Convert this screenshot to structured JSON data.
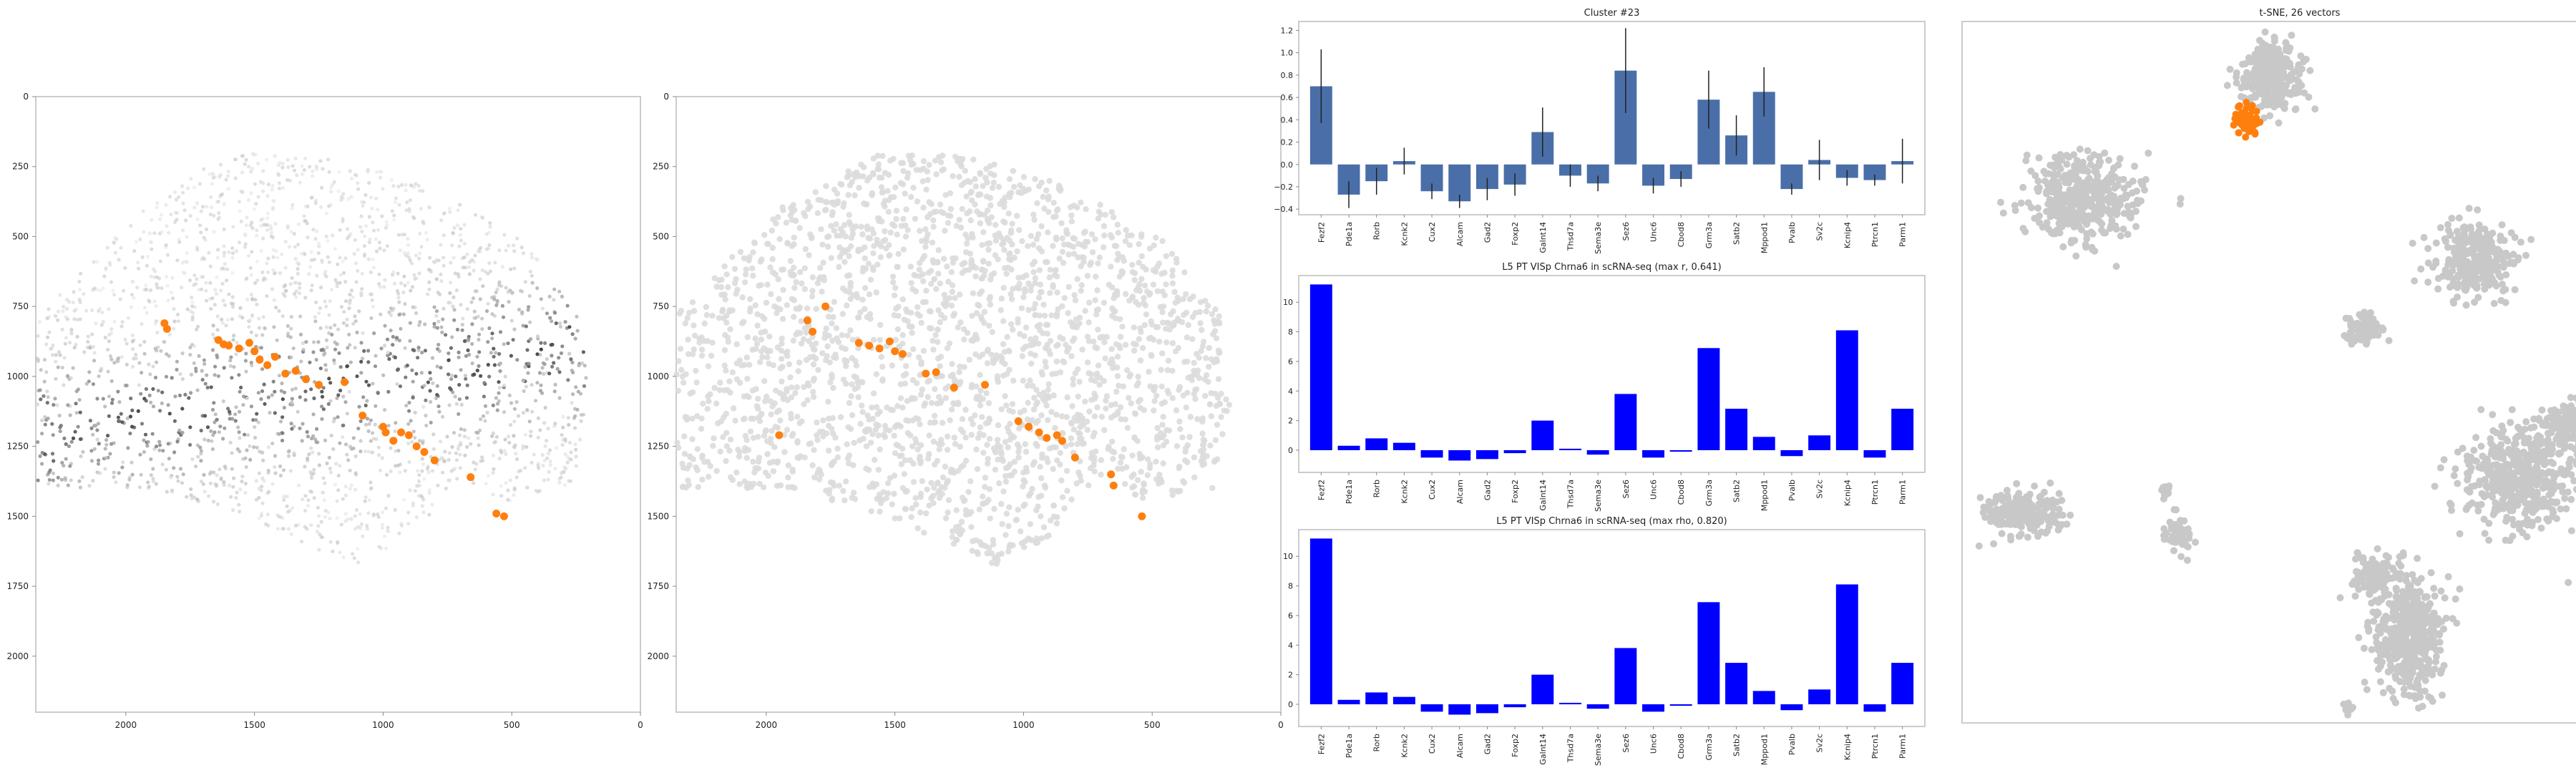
{
  "colors": {
    "bar_blue": "#4a6fa8",
    "bar_pure_blue": "#0000ff",
    "highlight_orange": "#ff7f0e",
    "cell_gray": "#c8c8c8",
    "frame_gray": "#cccccc"
  },
  "chart_data": [
    {
      "id": "spatial-left",
      "type": "scatter",
      "title": "",
      "xlim": [
        2350,
        0
      ],
      "ylim": [
        2200,
        0
      ],
      "x_ticks": [
        2000,
        1500,
        1000,
        500,
        0
      ],
      "y_ticks": [
        0,
        250,
        500,
        750,
        1000,
        1250,
        1500,
        1750,
        2000
      ],
      "x_tick_labels": [
        "2000",
        "1500",
        "1000",
        "500",
        "0"
      ],
      "y_tick_labels": [
        "0",
        "250",
        "500",
        "750",
        "1000",
        "1250",
        "1500",
        "1750",
        "2000"
      ],
      "background": "grayscale expression density, dark band ~y 800–1300",
      "highlight_points": [
        [
          1850,
          810
        ],
        [
          1840,
          830
        ],
        [
          1640,
          870
        ],
        [
          1620,
          885
        ],
        [
          1600,
          890
        ],
        [
          1560,
          900
        ],
        [
          1520,
          880
        ],
        [
          1500,
          910
        ],
        [
          1480,
          940
        ],
        [
          1450,
          960
        ],
        [
          1420,
          930
        ],
        [
          1380,
          990
        ],
        [
          1340,
          980
        ],
        [
          1300,
          1010
        ],
        [
          1250,
          1030
        ],
        [
          1150,
          1020
        ],
        [
          1080,
          1140
        ],
        [
          1000,
          1180
        ],
        [
          990,
          1200
        ],
        [
          960,
          1230
        ],
        [
          930,
          1200
        ],
        [
          900,
          1210
        ],
        [
          870,
          1250
        ],
        [
          840,
          1270
        ],
        [
          800,
          1300
        ],
        [
          660,
          1360
        ],
        [
          560,
          1490
        ],
        [
          530,
          1500
        ]
      ]
    },
    {
      "id": "spatial-right",
      "type": "scatter",
      "title": "",
      "xlim": [
        2350,
        0
      ],
      "ylim": [
        2200,
        0
      ],
      "x_ticks": [
        2000,
        1500,
        1000,
        500,
        0
      ],
      "y_ticks": [
        0,
        250,
        500,
        750,
        1000,
        1250,
        1500,
        1750,
        2000
      ],
      "x_tick_labels": [
        "2000",
        "1500",
        "1000",
        "500",
        "0"
      ],
      "y_tick_labels": [
        "0",
        "250",
        "500",
        "750",
        "1000",
        "1250",
        "1500",
        "1750",
        "2000"
      ],
      "background": "uniform light gray cells",
      "highlight_points": [
        [
          1840,
          800
        ],
        [
          1820,
          840
        ],
        [
          1770,
          750
        ],
        [
          1640,
          880
        ],
        [
          1600,
          890
        ],
        [
          1560,
          900
        ],
        [
          1520,
          875
        ],
        [
          1500,
          910
        ],
        [
          1470,
          920
        ],
        [
          1380,
          990
        ],
        [
          1340,
          985
        ],
        [
          1270,
          1040
        ],
        [
          1150,
          1030
        ],
        [
          1020,
          1160
        ],
        [
          980,
          1180
        ],
        [
          940,
          1200
        ],
        [
          910,
          1220
        ],
        [
          870,
          1210
        ],
        [
          850,
          1230
        ],
        [
          800,
          1290
        ],
        [
          660,
          1350
        ],
        [
          650,
          1390
        ],
        [
          540,
          1500
        ],
        [
          1950,
          1210
        ]
      ]
    },
    {
      "id": "cluster-bars",
      "type": "bar",
      "title": "Cluster #23",
      "categories": [
        "Fezf2",
        "Pde1a",
        "Rorb",
        "Kcnk2",
        "Cux2",
        "Alcam",
        "Gad2",
        "Foxp2",
        "Galnt14",
        "Thsd7a",
        "Sema3e",
        "Sez6",
        "Unc6",
        "Cbod8",
        "Grm3a",
        "Satb2",
        "Mppod1",
        "Pvalb",
        "Sv2c",
        "Kcnip4",
        "Ptrcn1",
        "Parm1"
      ],
      "values": [
        0.7,
        -0.27,
        -0.15,
        0.03,
        -0.24,
        -0.33,
        -0.22,
        -0.18,
        0.29,
        -0.1,
        -0.17,
        0.84,
        -0.19,
        -0.13,
        0.58,
        0.26,
        0.65,
        -0.22,
        0.04,
        -0.12,
        -0.14,
        0.03
      ],
      "errors": [
        0.33,
        0.12,
        0.12,
        0.12,
        0.07,
        0.06,
        0.1,
        0.1,
        0.22,
        0.1,
        0.07,
        0.38,
        0.07,
        0.07,
        0.26,
        0.18,
        0.22,
        0.05,
        0.18,
        0.07,
        0.05,
        0.2
      ],
      "ylim": [
        -0.45,
        1.28
      ],
      "y_ticks": [
        -0.4,
        -0.2,
        0.0,
        0.2,
        0.4,
        0.6,
        0.8,
        1.0,
        1.2
      ],
      "y_tick_labels": [
        "−0.4",
        "−0.2",
        "0.0",
        "0.2",
        "0.4",
        "0.6",
        "0.8",
        "1.0",
        "1.2"
      ]
    },
    {
      "id": "scrna-pearson",
      "type": "bar",
      "title": "L5 PT VISp Chrna6 in scRNA-seq (max r, 0.641)",
      "categories": [
        "Fezf2",
        "Pde1a",
        "Rorb",
        "Kcnk2",
        "Cux2",
        "Alcam",
        "Gad2",
        "Foxp2",
        "Galnt14",
        "Thsd7a",
        "Sema3e",
        "Sez6",
        "Unc6",
        "Cbod8",
        "Grm3a",
        "Satb2",
        "Mppod1",
        "Pvalb",
        "Sv2c",
        "Kcnip4",
        "Ptrcn1",
        "Parm1"
      ],
      "values": [
        11.2,
        0.3,
        0.8,
        0.5,
        -0.5,
        -0.7,
        -0.6,
        -0.2,
        2.0,
        0.1,
        -0.3,
        3.8,
        -0.5,
        -0.1,
        6.9,
        2.8,
        0.9,
        -0.4,
        1.0,
        8.1,
        -0.5,
        2.8
      ],
      "ylim": [
        -1.5,
        11.8
      ],
      "y_ticks": [
        0,
        2,
        4,
        6,
        8,
        10
      ],
      "y_tick_labels": [
        "0",
        "2",
        "4",
        "6",
        "8",
        "10"
      ]
    },
    {
      "id": "scrna-spearman",
      "type": "bar",
      "title": "L5 PT VISp Chrna6 in scRNA-seq (max rho, 0.820)",
      "categories": [
        "Fezf2",
        "Pde1a",
        "Rorb",
        "Kcnk2",
        "Cux2",
        "Alcam",
        "Gad2",
        "Foxp2",
        "Galnt14",
        "Thsd7a",
        "Sema3e",
        "Sez6",
        "Unc6",
        "Cbod8",
        "Grm3a",
        "Satb2",
        "Mppod1",
        "Pvalb",
        "Sv2c",
        "Kcnip4",
        "Ptrcn1",
        "Parm1"
      ],
      "values": [
        11.2,
        0.3,
        0.8,
        0.5,
        -0.5,
        -0.7,
        -0.6,
        -0.2,
        2.0,
        0.1,
        -0.3,
        3.8,
        -0.5,
        -0.1,
        6.9,
        2.8,
        0.9,
        -0.4,
        1.0,
        8.1,
        -0.5,
        2.8
      ],
      "ylim": [
        -1.5,
        11.8
      ],
      "y_ticks": [
        0,
        2,
        4,
        6,
        8,
        10
      ],
      "y_tick_labels": [
        "0",
        "2",
        "4",
        "6",
        "8",
        "10"
      ]
    },
    {
      "id": "tsne",
      "type": "scatter",
      "title": "t-SNE, 26 vectors",
      "xlim": [
        0,
        100
      ],
      "ylim": [
        0,
        100
      ],
      "clusters": [
        {
          "cx": 46,
          "cy": 9,
          "rx": 5,
          "ry": 4,
          "n": 220,
          "highlight": false
        },
        {
          "cx": 46,
          "cy": 5,
          "rx": 3,
          "ry": 2.5,
          "n": 90,
          "highlight": false
        },
        {
          "cx": 42,
          "cy": 14,
          "rx": 2,
          "ry": 2,
          "n": 60,
          "highlight": true
        },
        {
          "cx": 18,
          "cy": 25,
          "rx": 8,
          "ry": 6,
          "n": 420,
          "highlight": false
        },
        {
          "cx": 76,
          "cy": 34,
          "rx": 6,
          "ry": 5,
          "n": 300,
          "highlight": false
        },
        {
          "cx": 59,
          "cy": 44,
          "rx": 2.5,
          "ry": 2.5,
          "n": 100,
          "highlight": false
        },
        {
          "cx": 9,
          "cy": 70,
          "rx": 5.5,
          "ry": 3,
          "n": 220,
          "highlight": false
        },
        {
          "cx": 32,
          "cy": 73,
          "rx": 1.8,
          "ry": 2.8,
          "n": 60,
          "highlight": false
        },
        {
          "cx": 30,
          "cy": 67,
          "rx": 0.8,
          "ry": 1.2,
          "n": 15,
          "highlight": false
        },
        {
          "cx": 82,
          "cy": 65,
          "rx": 8,
          "ry": 7,
          "n": 480,
          "highlight": false
        },
        {
          "cx": 90,
          "cy": 58,
          "rx": 4,
          "ry": 4,
          "n": 150,
          "highlight": false
        },
        {
          "cx": 66,
          "cy": 87,
          "rx": 5,
          "ry": 9,
          "n": 480,
          "highlight": false
        },
        {
          "cx": 61,
          "cy": 79,
          "rx": 3,
          "ry": 3,
          "n": 120,
          "highlight": false
        },
        {
          "cx": 57,
          "cy": 98,
          "rx": 1,
          "ry": 1,
          "n": 10,
          "highlight": false
        }
      ]
    }
  ]
}
